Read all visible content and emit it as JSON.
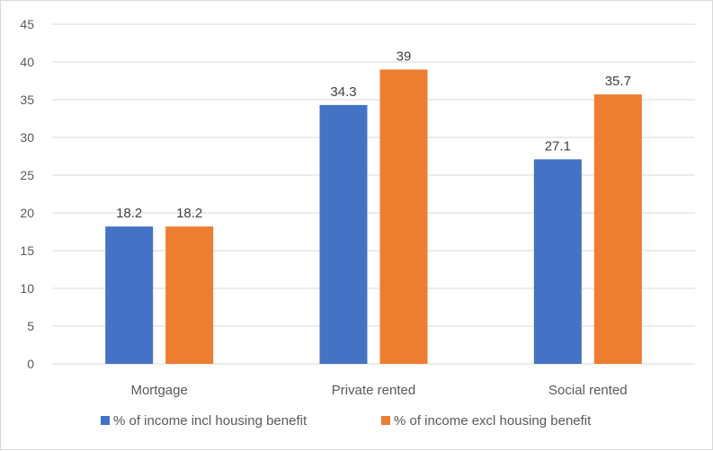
{
  "chart_data": {
    "type": "bar",
    "categories": [
      "Mortgage",
      "Private rented",
      "Social rented"
    ],
    "series": [
      {
        "name": "% of income incl housing benefit",
        "values": [
          18.2,
          34.3,
          27.1
        ],
        "color": "#4472C4"
      },
      {
        "name": "% of income excl housing benefit",
        "values": [
          18.2,
          39,
          35.7
        ],
        "color": "#ED7D31"
      }
    ],
    "data_labels": [
      [
        "18.2",
        "34.3",
        "27.1"
      ],
      [
        "18.2",
        "39",
        "35.7"
      ]
    ],
    "ylim": [
      0,
      45
    ],
    "y_ticks": [
      0,
      5,
      10,
      15,
      20,
      25,
      30,
      35,
      40,
      45
    ],
    "grid": true,
    "legend_position": "bottom",
    "gridline_color": "#d9d9d9"
  }
}
